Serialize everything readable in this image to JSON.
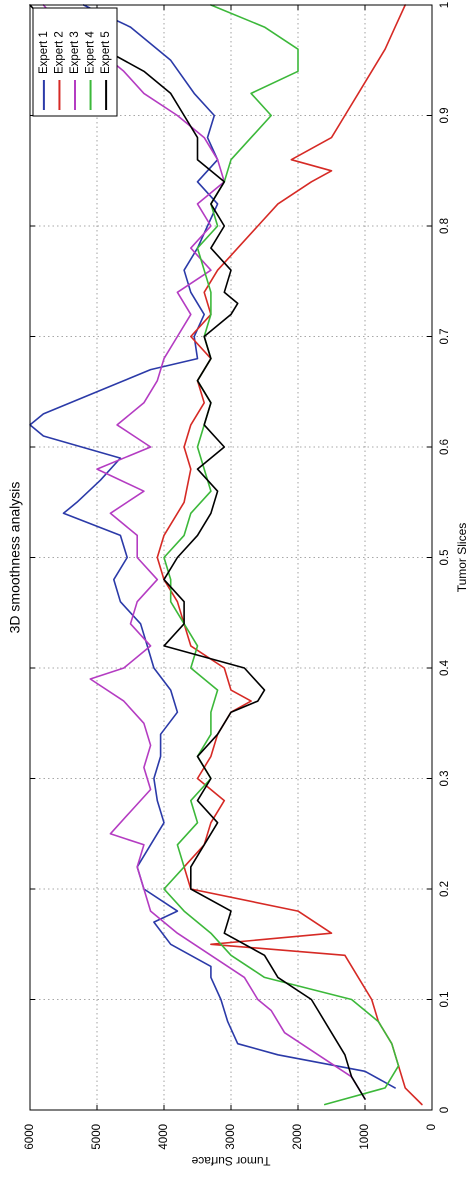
{
  "chart_data": {
    "type": "line",
    "title": "3D smoothness analysis",
    "xlabel": "Tumor Slices",
    "ylabel": "Tumor Surface",
    "xlim": [
      0,
      1
    ],
    "ylim": [
      0,
      6000
    ],
    "xticks": [
      "0",
      "0.1",
      "0.2",
      "0.3",
      "0.4",
      "0.5",
      "0.6",
      "0.7",
      "0.8",
      "0.9",
      "1"
    ],
    "yticks": [
      "0",
      "1000",
      "2000",
      "3000",
      "4000",
      "5000",
      "6000"
    ],
    "grid": true,
    "legend_position": "top-right",
    "series": [
      {
        "name": "Expert 1",
        "color": "#2b3aa8",
        "x": [
          0.02,
          0.035,
          0.05,
          0.06,
          0.08,
          0.1,
          0.12,
          0.13,
          0.15,
          0.17,
          0.18,
          0.2,
          0.22,
          0.24,
          0.26,
          0.28,
          0.3,
          0.32,
          0.34,
          0.36,
          0.38,
          0.4,
          0.42,
          0.44,
          0.46,
          0.48,
          0.5,
          0.52,
          0.54,
          0.55,
          0.57,
          0.59,
          0.61,
          0.62,
          0.63,
          0.65,
          0.67,
          0.68,
          0.7,
          0.72,
          0.74,
          0.76,
          0.78,
          0.8,
          0.82,
          0.84,
          0.86,
          0.88,
          0.9,
          0.92,
          0.95,
          0.98,
          1.0
        ],
        "y": [
          550,
          1000,
          2300,
          2900,
          3050,
          3150,
          3300,
          3300,
          3900,
          4150,
          3800,
          4300,
          4400,
          4200,
          4000,
          4100,
          4150,
          4050,
          4050,
          3800,
          3900,
          4150,
          4250,
          4350,
          4650,
          4750,
          4550,
          4650,
          5500,
          5300,
          4950,
          4650,
          5800,
          6000,
          5800,
          5000,
          4200,
          3500,
          3550,
          3400,
          3600,
          3700,
          3500,
          3350,
          3200,
          3500,
          3200,
          3350,
          3250,
          3550,
          3900,
          4500,
          5200
        ]
      },
      {
        "name": "Expert 2",
        "color": "#d62a25",
        "x": [
          0.005,
          0.02,
          0.04,
          0.06,
          0.08,
          0.1,
          0.12,
          0.14,
          0.15,
          0.16,
          0.18,
          0.2,
          0.22,
          0.24,
          0.26,
          0.28,
          0.3,
          0.32,
          0.34,
          0.36,
          0.37,
          0.38,
          0.4,
          0.42,
          0.44,
          0.46,
          0.48,
          0.5,
          0.52,
          0.55,
          0.58,
          0.6,
          0.62,
          0.64,
          0.66,
          0.68,
          0.7,
          0.72,
          0.74,
          0.76,
          0.78,
          0.8,
          0.82,
          0.84,
          0.85,
          0.86,
          0.88,
          0.9,
          0.92,
          0.94,
          0.96,
          0.98,
          1.0
        ],
        "y": [
          150,
          400,
          500,
          600,
          800,
          900,
          1100,
          1300,
          3300,
          1500,
          2000,
          3600,
          3700,
          3400,
          3300,
          3100,
          3500,
          3300,
          3200,
          3000,
          2700,
          3000,
          3100,
          3600,
          3700,
          3800,
          4000,
          4100,
          4000,
          3700,
          3600,
          3700,
          3600,
          3400,
          3500,
          3300,
          3600,
          3300,
          3400,
          3200,
          2900,
          2600,
          2300,
          1800,
          1500,
          2100,
          1500,
          1300,
          1100,
          900,
          700,
          550,
          400
        ]
      },
      {
        "name": "Expert 3",
        "color": "#b43cc2",
        "x": [
          0.01,
          0.03,
          0.05,
          0.07,
          0.09,
          0.1,
          0.12,
          0.14,
          0.16,
          0.18,
          0.2,
          0.22,
          0.24,
          0.25,
          0.27,
          0.29,
          0.31,
          0.33,
          0.35,
          0.37,
          0.39,
          0.4,
          0.42,
          0.44,
          0.46,
          0.48,
          0.5,
          0.52,
          0.54,
          0.56,
          0.58,
          0.6,
          0.62,
          0.64,
          0.66,
          0.68,
          0.7,
          0.72,
          0.74,
          0.76,
          0.78,
          0.8,
          0.82,
          0.84,
          0.86,
          0.88,
          0.9,
          0.92,
          0.94,
          0.96,
          0.98,
          1.0
        ],
        "y": [
          1000,
          1200,
          1700,
          2200,
          2400,
          2600,
          2800,
          3300,
          3800,
          4200,
          4300,
          4400,
          4300,
          4800,
          4500,
          4200,
          4300,
          4200,
          4300,
          4600,
          5100,
          4600,
          4200,
          4500,
          4400,
          4100,
          4400,
          4400,
          4800,
          4300,
          5000,
          4200,
          4700,
          4300,
          4100,
          4000,
          3800,
          3600,
          3800,
          3300,
          3600,
          3300,
          3500,
          3100,
          3200,
          3400,
          3800,
          4300,
          4600,
          5000,
          5500,
          5800
        ]
      },
      {
        "name": "Expert 4",
        "color": "#3cb83a",
        "x": [
          0.005,
          0.02,
          0.04,
          0.06,
          0.08,
          0.1,
          0.12,
          0.14,
          0.16,
          0.18,
          0.2,
          0.22,
          0.24,
          0.26,
          0.28,
          0.3,
          0.32,
          0.34,
          0.36,
          0.38,
          0.4,
          0.42,
          0.44,
          0.46,
          0.48,
          0.5,
          0.52,
          0.54,
          0.56,
          0.58,
          0.6,
          0.62,
          0.64,
          0.66,
          0.68,
          0.7,
          0.72,
          0.74,
          0.76,
          0.78,
          0.8,
          0.82,
          0.84,
          0.86,
          0.88,
          0.9,
          0.92,
          0.94,
          0.96,
          0.98,
          1.0
        ],
        "y": [
          1600,
          700,
          500,
          600,
          800,
          1200,
          2500,
          3000,
          3300,
          3700,
          4000,
          3700,
          3800,
          3500,
          3600,
          3300,
          3500,
          3300,
          3300,
          3200,
          3600,
          3500,
          3700,
          3900,
          3900,
          4000,
          3700,
          3600,
          3300,
          3400,
          3500,
          3400,
          3300,
          3500,
          3300,
          3400,
          3300,
          3300,
          3400,
          3500,
          3200,
          3300,
          3100,
          3000,
          2700,
          2400,
          2700,
          2000,
          2000,
          2500,
          3300
        ]
      },
      {
        "name": "Expert 5",
        "color": "#000000",
        "x": [
          0.01,
          0.03,
          0.05,
          0.07,
          0.09,
          0.1,
          0.12,
          0.14,
          0.16,
          0.18,
          0.2,
          0.22,
          0.24,
          0.26,
          0.28,
          0.3,
          0.32,
          0.34,
          0.36,
          0.37,
          0.38,
          0.4,
          0.42,
          0.44,
          0.46,
          0.48,
          0.5,
          0.52,
          0.54,
          0.56,
          0.58,
          0.6,
          0.62,
          0.64,
          0.66,
          0.68,
          0.7,
          0.72,
          0.73,
          0.74,
          0.76,
          0.78,
          0.8,
          0.82,
          0.84,
          0.86,
          0.88,
          0.9,
          0.92,
          0.94,
          0.96,
          0.98,
          1.0
        ],
        "y": [
          1000,
          1200,
          1300,
          1500,
          1700,
          1800,
          2300,
          2500,
          3100,
          3000,
          3600,
          3600,
          3400,
          3200,
          3500,
          3300,
          3500,
          3200,
          3000,
          2600,
          2500,
          2800,
          4000,
          3700,
          3700,
          4000,
          3800,
          3500,
          3300,
          3200,
          3500,
          3100,
          3400,
          3300,
          3500,
          3300,
          3400,
          3000,
          2900,
          3100,
          3000,
          3300,
          3100,
          3300,
          3100,
          3500,
          3500,
          3700,
          3900,
          4300,
          4900,
          5700,
          6000
        ]
      }
    ]
  }
}
